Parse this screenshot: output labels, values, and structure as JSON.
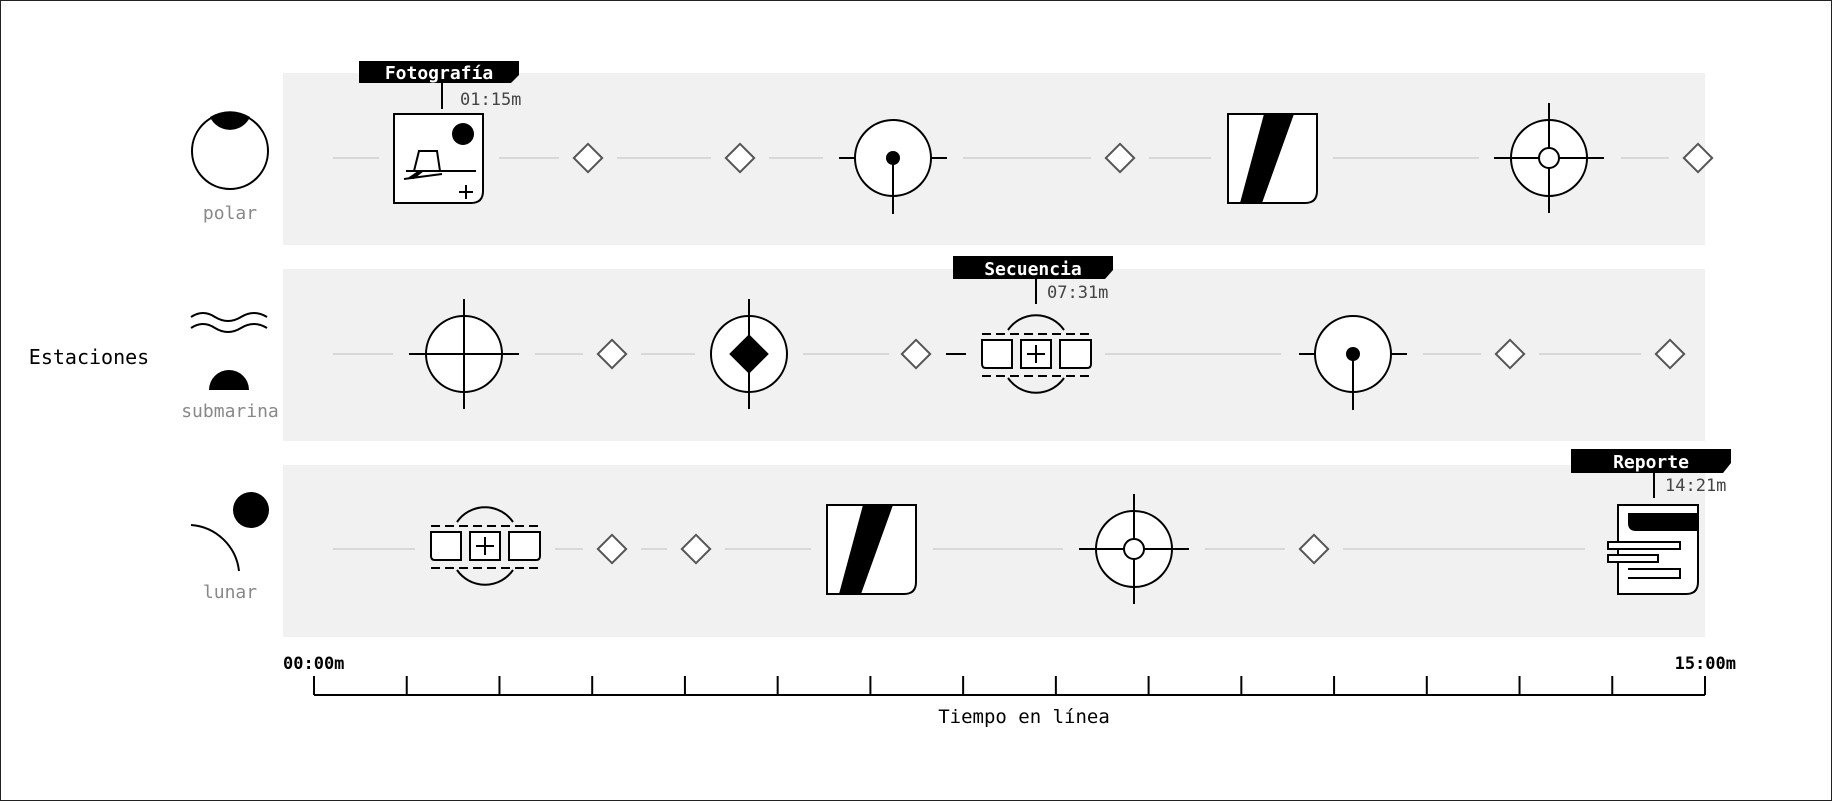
{
  "diagram": {
    "axis_group_label": "Estaciones",
    "rows": [
      {
        "label": "polar"
      },
      {
        "label": "submarina"
      },
      {
        "label": "lunar"
      }
    ],
    "axis": {
      "start_label": "00:00m",
      "end_label": "15:00m",
      "title": "Tiempo en línea"
    },
    "callouts": [
      {
        "label": "Fotografía",
        "time": "01:15m"
      },
      {
        "label": "Secuencia",
        "time": "07:31m"
      },
      {
        "label": "Reporte",
        "time": "14:21m"
      }
    ]
  }
}
